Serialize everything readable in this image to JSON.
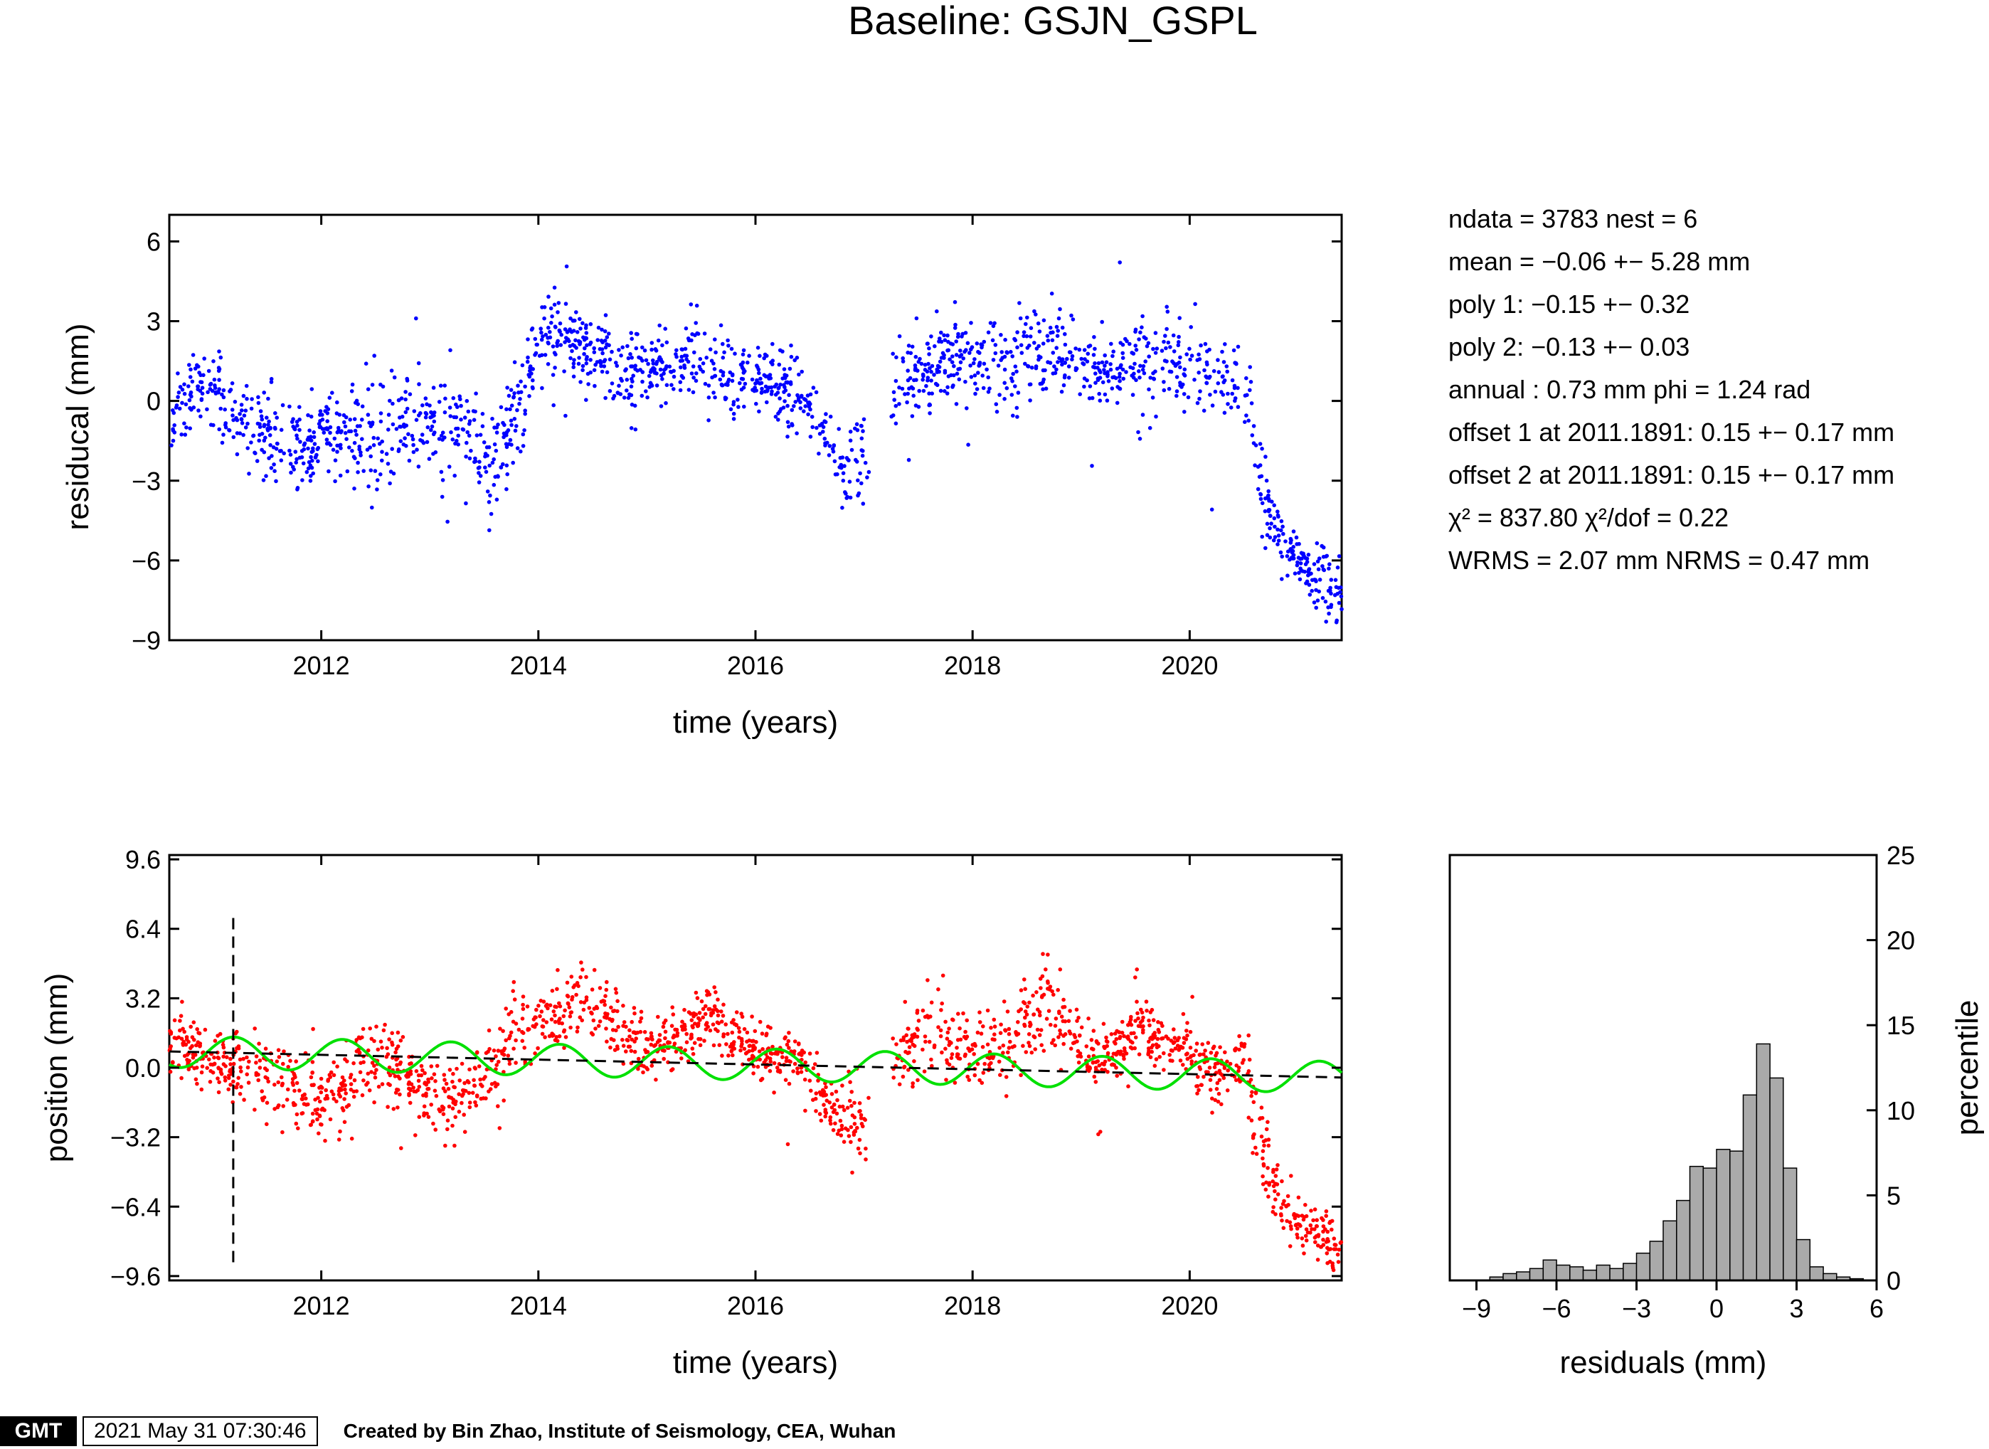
{
  "title": "Baseline: GSJN_GSPL",
  "stats": [
    "ndata = 3783  nest = 6",
    "mean = −0.06 +− 5.28 mm",
    "poly 1: −0.15 +− 0.32",
    "poly 2: −0.13 +− 0.03",
    "annual : 0.73 mm  phi = 1.24 rad",
    "offset 1 at 2011.1891: 0.15 +− 0.17 mm",
    "offset 2 at 2011.1891: 0.15 +− 0.17 mm",
    "χ² = 837.80  χ²/dof = 0.22",
    "WRMS = 2.07 mm  NRMS = 0.47 mm"
  ],
  "footer": {
    "logo": "GMT",
    "timestamp": "2021 May 31 07:30:46",
    "credit": "Created by Bin Zhao, Institute of Seismology, CEA, Wuhan"
  },
  "colors": {
    "residual_points": "#0000ff",
    "position_points": "#ff0000",
    "annual_fit": "#00e000",
    "trend_fit": "#000000",
    "histogram_bars": "#aaaaaa"
  },
  "chart_data": [
    {
      "type": "scatter",
      "name": "residuals",
      "xlabel": "time (years)",
      "ylabel": "residucal (mm)",
      "xlim": [
        2010.6,
        2021.4
      ],
      "ylim": [
        -9,
        7
      ],
      "xticks": [
        "2012",
        "2014",
        "2016",
        "2018",
        "2020"
      ],
      "yticks": [
        "6",
        "3",
        "0",
        "−3",
        "−6",
        "−9"
      ],
      "x": [
        2010.6,
        2010.8,
        2011.0,
        2011.2,
        2011.4,
        2011.6,
        2011.8,
        2012.0,
        2012.2,
        2012.4,
        2012.6,
        2012.8,
        2013.0,
        2013.2,
        2013.4,
        2013.6,
        2013.8,
        2014.0,
        2014.2,
        2014.4,
        2014.6,
        2014.8,
        2015.0,
        2015.2,
        2015.4,
        2015.6,
        2015.8,
        2016.0,
        2016.2,
        2016.4,
        2016.6,
        2016.8,
        2017.0,
        2017.15,
        2017.3,
        2017.5,
        2017.7,
        2017.9,
        2018.1,
        2018.3,
        2018.5,
        2018.7,
        2018.9,
        2019.1,
        2019.3,
        2019.5,
        2019.7,
        2019.9,
        2020.1,
        2020.3,
        2020.5,
        2020.6,
        2020.7,
        2020.8,
        2020.9,
        2021.0,
        2021.1,
        2021.2,
        2021.3,
        2021.4
      ],
      "y": [
        -0.5,
        0.5,
        0.3,
        -0.5,
        -1.0,
        -1.5,
        -2.0,
        -1.3,
        -1.0,
        -1.2,
        -1.0,
        -0.8,
        -0.8,
        -1.0,
        -1.5,
        -2.5,
        -0.5,
        2.0,
        2.5,
        2.3,
        1.5,
        1.0,
        1.3,
        1.2,
        1.5,
        1.2,
        0.8,
        0.8,
        0.6,
        0.3,
        -1.0,
        -2.5,
        -2.0,
        -2.3,
        0.5,
        1.0,
        1.5,
        1.6,
        1.5,
        1.3,
        1.8,
        2.0,
        1.8,
        1.2,
        1.0,
        1.2,
        1.4,
        1.5,
        1.2,
        0.8,
        0.5,
        -1.5,
        -3.5,
        -5.0,
        -5.5,
        -6.0,
        -6.5,
        -6.8,
        -7.2,
        -7.5
      ],
      "spread": [
        0.7,
        0.7,
        0.7,
        0.7,
        0.8,
        1.0,
        1.0,
        0.8,
        0.8,
        1.1,
        1.1,
        0.9,
        0.8,
        0.8,
        0.9,
        1.1,
        0.9,
        0.8,
        0.8,
        0.8,
        0.8,
        0.7,
        0.6,
        0.6,
        0.7,
        0.7,
        0.6,
        0.6,
        0.6,
        0.6,
        0.7,
        0.8,
        0.8,
        0.8,
        0.9,
        0.9,
        0.8,
        0.8,
        0.8,
        0.8,
        1.0,
        1.0,
        0.8,
        0.7,
        0.7,
        0.8,
        0.8,
        0.7,
        0.7,
        0.7,
        0.8,
        0.9,
        0.9,
        0.7,
        0.6,
        0.6,
        0.6,
        0.7,
        0.8,
        0.8
      ]
    },
    {
      "type": "scatter",
      "name": "position",
      "xlabel": "time (years)",
      "ylabel": "position (mm)",
      "xlim": [
        2010.6,
        2021.4
      ],
      "ylim": [
        -9.8,
        9.8
      ],
      "xticks": [
        "2012",
        "2014",
        "2016",
        "2018",
        "2020"
      ],
      "yticks": [
        "9.6",
        "6.4",
        "3.2",
        "0.0",
        "−3.2",
        "−6.4",
        "−9.6"
      ],
      "offset_line_x": 2011.1891,
      "series": [
        {
          "x": [
            2010.6,
            2010.8,
            2011.0,
            2011.2,
            2011.4,
            2011.6,
            2011.8,
            2012.0,
            2012.2,
            2012.4,
            2012.6,
            2012.8,
            2013.0,
            2013.2,
            2013.4,
            2013.6,
            2013.8,
            2014.0,
            2014.2,
            2014.4,
            2014.6,
            2014.8,
            2015.0,
            2015.2,
            2015.4,
            2015.6,
            2015.8,
            2016.0,
            2016.2,
            2016.4,
            2016.6,
            2016.8,
            2017.0,
            2017.15,
            2017.3,
            2017.5,
            2017.7,
            2017.9,
            2018.1,
            2018.3,
            2018.5,
            2018.7,
            2018.9,
            2019.1,
            2019.3,
            2019.5,
            2019.7,
            2019.9,
            2020.1,
            2020.3,
            2020.5,
            2020.6,
            2020.7,
            2020.8,
            2020.9,
            2021.0,
            2021.1,
            2021.2,
            2021.3,
            2021.4
          ],
          "y": [
            1.2,
            1.0,
            0.2,
            0.1,
            -0.3,
            -0.5,
            -0.8,
            -1.3,
            -1.0,
            0.5,
            0.3,
            -0.5,
            -1.0,
            -1.5,
            -1.0,
            -0.5,
            1.8,
            2.0,
            2.3,
            3.5,
            2.5,
            1.5,
            0.8,
            1.2,
            1.5,
            2.8,
            1.3,
            0.8,
            0.5,
            0.2,
            -1.5,
            -2.5,
            -2.8,
            -2.5,
            0.5,
            2.0,
            1.5,
            1.0,
            0.6,
            1.0,
            2.0,
            3.0,
            1.5,
            0.3,
            0.8,
            1.8,
            1.5,
            0.8,
            0.2,
            0.0,
            0.3,
            -2.5,
            -4.5,
            -6.0,
            -6.8,
            -7.3,
            -7.6,
            -7.8,
            -8.0,
            -8.2
          ],
          "spread": [
            0.7,
            0.7,
            0.7,
            0.7,
            0.8,
            1.0,
            1.0,
            0.8,
            0.8,
            1.1,
            1.1,
            0.9,
            0.8,
            0.8,
            0.9,
            1.1,
            0.9,
            0.8,
            0.8,
            0.8,
            0.8,
            0.7,
            0.6,
            0.6,
            0.7,
            0.7,
            0.6,
            0.6,
            0.6,
            0.6,
            0.7,
            0.8,
            0.8,
            0.8,
            0.9,
            0.9,
            0.8,
            0.8,
            0.8,
            0.8,
            1.0,
            1.0,
            0.8,
            0.7,
            0.7,
            0.8,
            0.8,
            0.7,
            0.7,
            0.7,
            0.8,
            0.9,
            0.9,
            0.7,
            0.6,
            0.6,
            0.6,
            0.7,
            0.8,
            0.8
          ]
        },
        {
          "type": "line",
          "style": "dashed",
          "x": [
            2010.6,
            2021.4
          ],
          "y": [
            0.75,
            -0.45
          ]
        },
        {
          "type": "line",
          "style": "annual sinusoid",
          "amplitude": 0.73,
          "period_years": 1.0,
          "phi_rad": 1.24
        }
      ]
    },
    {
      "type": "bar",
      "name": "histogram",
      "xlabel": "residuals (mm)",
      "ylabel": "percentile",
      "xlim": [
        -10,
        6
      ],
      "ylim": [
        0,
        25
      ],
      "xticks": [
        "−9",
        "−6",
        "−3",
        "0",
        "3",
        "6"
      ],
      "yticks": [
        "0",
        "5",
        "10",
        "15",
        "20",
        "25"
      ],
      "bin_width": 0.5,
      "bin_left_edges": [
        -8.5,
        -8.0,
        -7.5,
        -7.0,
        -6.5,
        -6.0,
        -5.5,
        -5.0,
        -4.5,
        -4.0,
        -3.5,
        -3.0,
        -2.5,
        -2.0,
        -1.5,
        -1.0,
        -0.5,
        0.0,
        0.5,
        1.0,
        1.5,
        2.0,
        2.5,
        3.0,
        3.5,
        4.0,
        4.5,
        5.0
      ],
      "values": [
        0.2,
        0.4,
        0.5,
        0.7,
        1.2,
        0.9,
        0.8,
        0.6,
        0.9,
        0.7,
        1.0,
        1.6,
        2.3,
        3.5,
        4.7,
        6.7,
        6.6,
        7.7,
        7.6,
        10.9,
        13.9,
        11.9,
        6.6,
        2.4,
        0.8,
        0.4,
        0.2,
        0.1
      ]
    }
  ]
}
